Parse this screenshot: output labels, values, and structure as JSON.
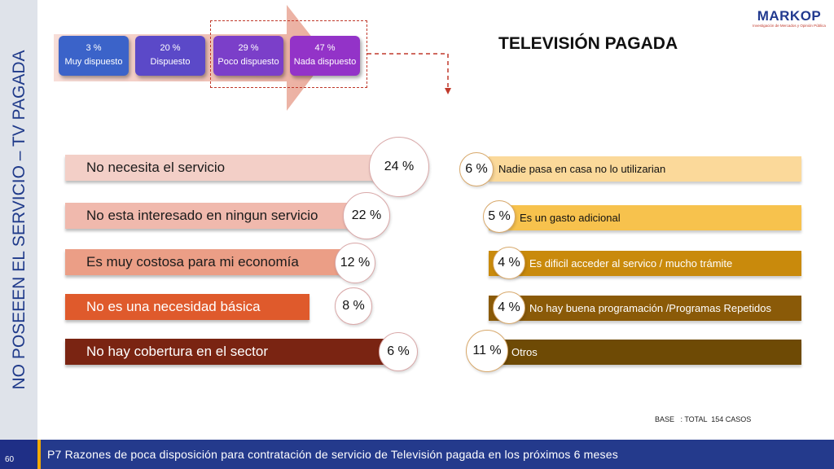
{
  "side_title": "NO POSEEEN EL SERVICIO – TV PAGADA",
  "page_number": "60",
  "logo": {
    "text": "MARKOP",
    "subtitle": "Investigación de Mercados y Opinión Pública"
  },
  "main_title": "TELEVISIÓN PAGADA",
  "scale": [
    {
      "pct": "3 %",
      "label": "Muy dispuesto",
      "color": "#3b63c9"
    },
    {
      "pct": "20 %",
      "label": "Dispuesto",
      "color": "#5b49c8"
    },
    {
      "pct": "29 %",
      "label": "Poco dispuesto",
      "color": "#7b3fc9"
    },
    {
      "pct": "47 %",
      "label": "Nada dispuesto",
      "color": "#9333c8"
    }
  ],
  "left_reasons": [
    {
      "label": "No necesita  el servicio",
      "pct": "24 %",
      "value": 24,
      "color": "#f3cfc7",
      "text_color": "#1b1b1b"
    },
    {
      "label": "No esta interesado en ningun servicio",
      "pct": "22 %",
      "value": 22,
      "color": "#f0b9ad",
      "text_color": "#1b1b1b"
    },
    {
      "label": "Es muy costosa para mi economía",
      "pct": "12 %",
      "value": 12,
      "color": "#eb9e86",
      "text_color": "#1b1b1b"
    },
    {
      "label": "No es una necesidad básica",
      "pct": "8 %",
      "value": 8,
      "color": "#df5a2c",
      "text_color": "#ffffff"
    },
    {
      "label": "No hay cobertura en el sector",
      "pct": "6 %",
      "value": 6,
      "color": "#7a2412",
      "text_color": "#ffffff"
    }
  ],
  "right_reasons": [
    {
      "label": "Nadie pasa en casa no lo utilizarian",
      "pct": "6 %",
      "value": 6,
      "color": "#fbd99a",
      "text_color": "#111111"
    },
    {
      "label": "Es un gasto adicional",
      "pct": "5 %",
      "value": 5,
      "color": "#f7c24d",
      "text_color": "#111111"
    },
    {
      "label": "Es dificil acceder al servico / mucho trámite",
      "pct": "4 %",
      "value": 4,
      "color": "#c98a0c",
      "text_color": "#ffffff"
    },
    {
      "label": "No hay buena programación /Programas Repetidos",
      "pct": "4 %",
      "value": 4,
      "color": "#8a5a08",
      "text_color": "#ffffff"
    },
    {
      "label": "Otros",
      "pct": "11 %",
      "value": 11,
      "color": "#6e4a05",
      "text_color": "#ffffff"
    }
  ],
  "base_note": "BASE   : TOTAL  154 CASOS",
  "footer": "P7 Razones de poca disposición para contratación de servicio de Televisión pagada en los próximos 6 meses"
}
